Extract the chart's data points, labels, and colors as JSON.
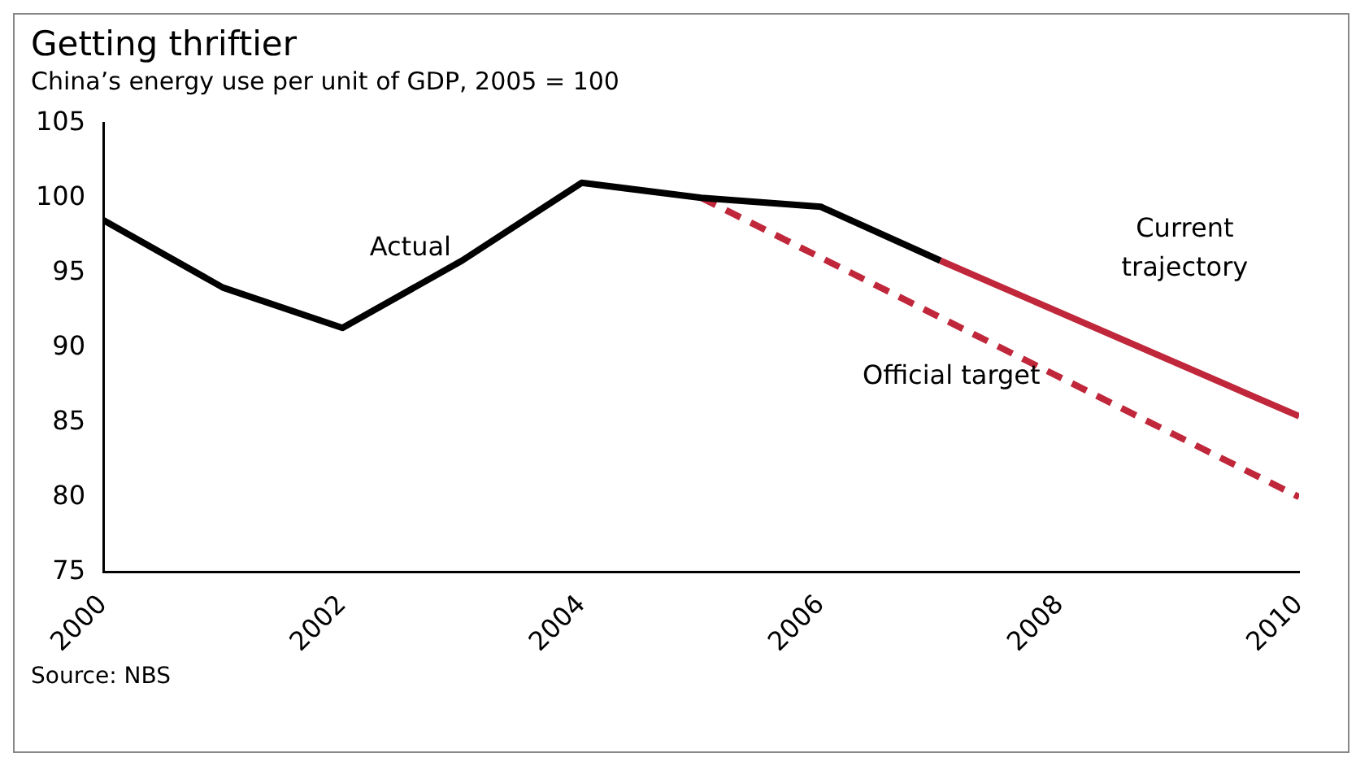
{
  "chart_data": {
    "type": "line",
    "title": "Getting thriftier",
    "subtitle": "China’s energy use per unit of GDP, 2005 = 100",
    "annotations": [
      "Source: NBS"
    ],
    "xlim": [
      2000,
      2010
    ],
    "xticks": [
      2000,
      2002,
      2004,
      2006,
      2008,
      2010
    ],
    "ylim": [
      75,
      105
    ],
    "yticks": [
      75,
      80,
      85,
      90,
      95,
      100,
      105
    ],
    "grid": false,
    "legend": false,
    "marker": "none",
    "series": [
      {
        "name": "Actual",
        "color": "#000000",
        "line_style": "solid",
        "x": [
          2000,
          2001,
          2002,
          2003,
          2004,
          2005,
          2006,
          2007
        ],
        "values": [
          98.5,
          94,
          91.3,
          95.8,
          101,
          100,
          99.4,
          95.8
        ]
      },
      {
        "name": "Current trajectory",
        "color": "#c0273a",
        "line_style": "solid",
        "x": [
          2007,
          2010
        ],
        "values": [
          95.8,
          85.4
        ]
      },
      {
        "name": "Official target",
        "color": "#c0273a",
        "line_style": "dashed",
        "x": [
          2005,
          2010
        ],
        "values": [
          100,
          80
        ]
      }
    ]
  }
}
